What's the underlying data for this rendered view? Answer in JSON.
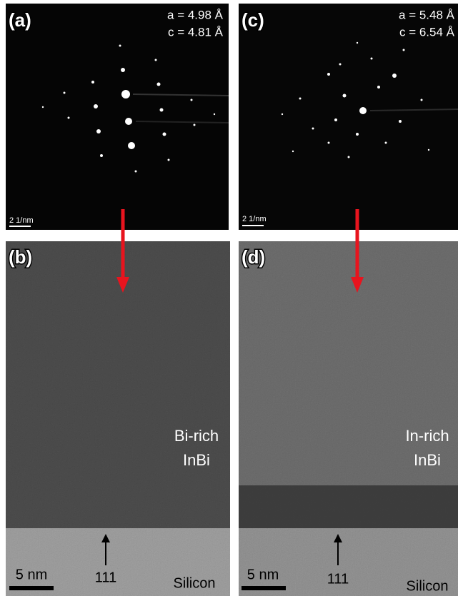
{
  "panels": [
    {
      "label": "(a)",
      "lattice": [
        "a = 4.98 Å",
        "c = 4.81 Å"
      ],
      "scale": "2 1/nm"
    },
    {
      "label": "(b)",
      "region": [
        "Bi-rich",
        "InBi"
      ],
      "direction": "111",
      "scale": "5 nm",
      "substrate": "Silicon"
    },
    {
      "label": "(c)",
      "lattice": [
        "a = 5.48 Å",
        "c = 6.54 Å"
      ],
      "scale": "2 1/nm"
    },
    {
      "label": "(d)",
      "region": [
        "In-rich",
        "InBi"
      ],
      "direction": "111",
      "scale": "5 nm",
      "substrate": "Silicon"
    }
  ]
}
